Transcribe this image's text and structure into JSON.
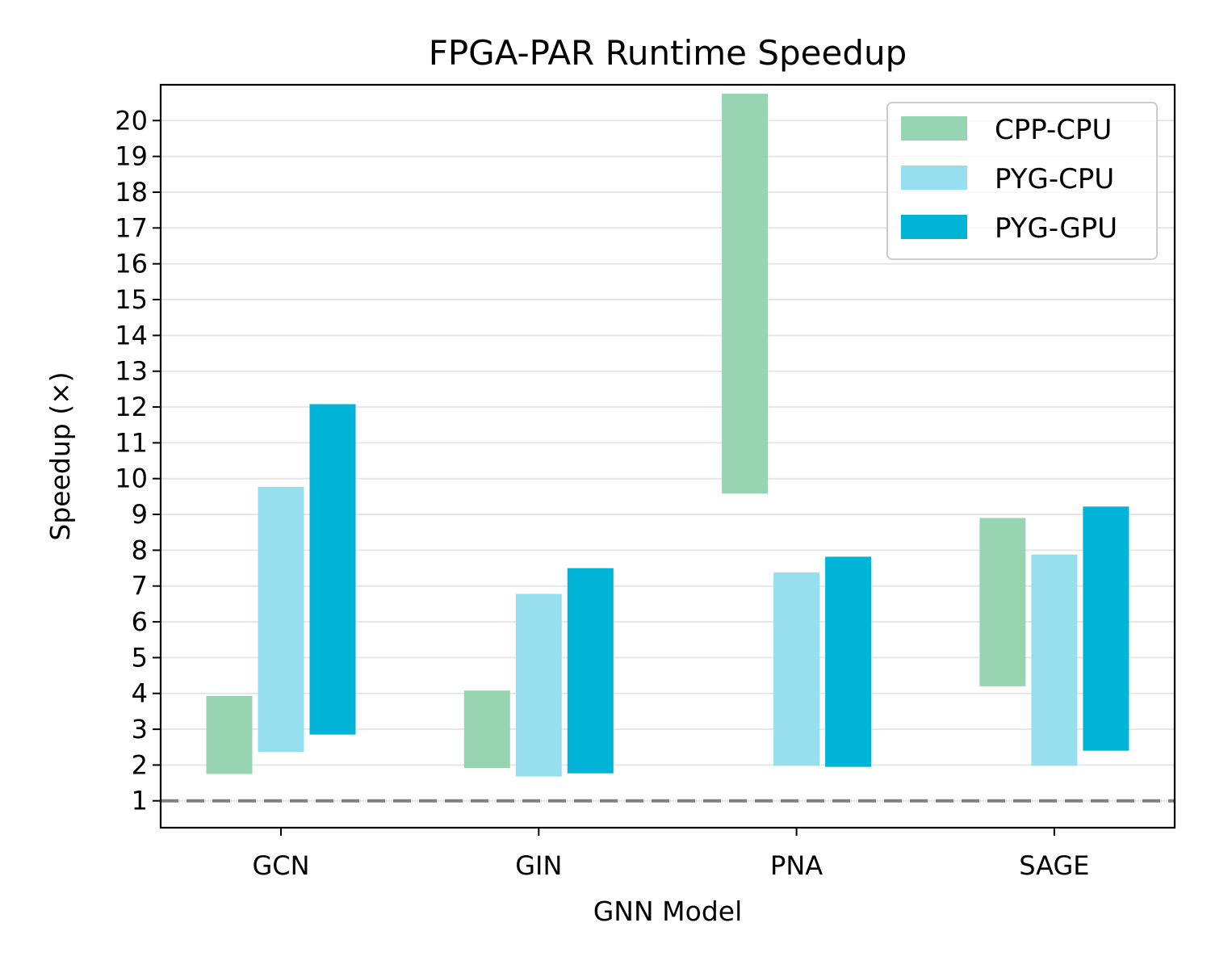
{
  "chart_data": {
    "type": "bar",
    "subtype": "floating-range-bar",
    "title": "FPGA-PAR Runtime Speedup",
    "xlabel": "GNN Model",
    "ylabel": "Speedup (×)",
    "categories": [
      "GCN",
      "GIN",
      "PNA",
      "SAGE"
    ],
    "ylim": [
      0.25,
      21.0
    ],
    "yticks": [
      1,
      2,
      3,
      4,
      5,
      6,
      7,
      8,
      9,
      10,
      11,
      12,
      13,
      14,
      15,
      16,
      17,
      18,
      19,
      20
    ],
    "grid": "horizontal",
    "reference_line": {
      "value": 1,
      "style": "dashed",
      "color": "#808080"
    },
    "legend_position": "top-right",
    "series": [
      {
        "name": "CPP-CPU",
        "color": "#97d5b2",
        "ranges": [
          [
            1.75,
            3.93
          ],
          [
            1.92,
            4.08
          ],
          [
            9.58,
            20.75
          ],
          [
            4.2,
            8.9
          ]
        ]
      },
      {
        "name": "PYG-CPU",
        "color": "#95dfef",
        "ranges": [
          [
            2.37,
            9.77
          ],
          [
            1.68,
            6.78
          ],
          [
            1.98,
            7.38
          ],
          [
            1.98,
            7.88
          ]
        ]
      },
      {
        "name": "PYG-GPU",
        "color": "#00b4d8",
        "ranges": [
          [
            2.85,
            12.08
          ],
          [
            1.77,
            7.5
          ],
          [
            1.95,
            7.82
          ],
          [
            2.4,
            9.22
          ]
        ]
      }
    ]
  }
}
